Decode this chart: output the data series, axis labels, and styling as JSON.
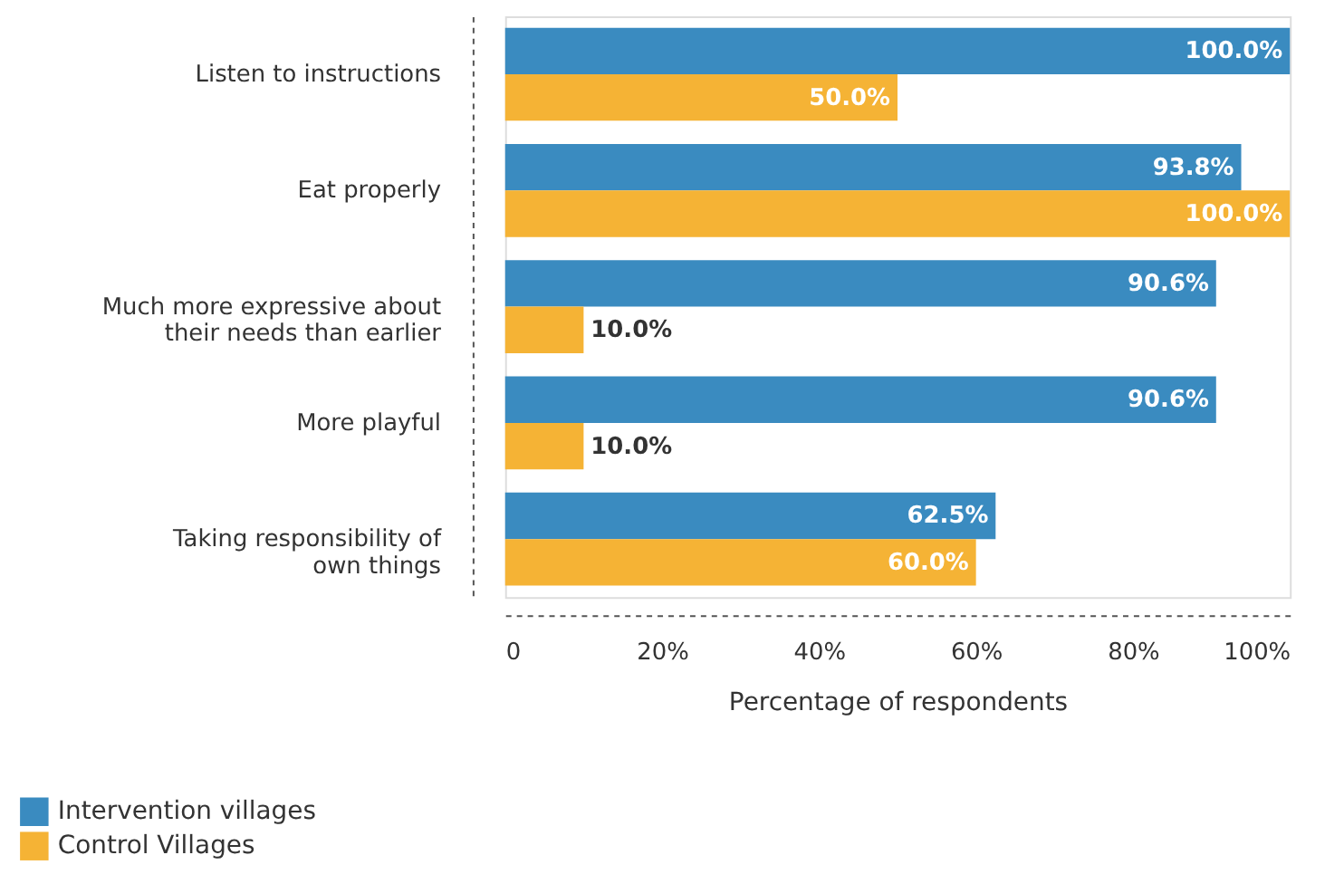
{
  "chart_data": {
    "type": "bar",
    "orientation": "horizontal",
    "categories": [
      "Listen to instructions",
      "Eat properly",
      "Much more expressive about their needs than earlier",
      "More playful",
      "Taking responsibility of own things"
    ],
    "series": [
      {
        "name": "Intervention villages",
        "color": "#3a8bc0",
        "values": [
          100.0,
          93.8,
          90.6,
          90.6,
          62.5
        ],
        "value_labels": [
          "100.0%",
          "93.8%",
          "90.6%",
          "90.6%",
          "62.5%"
        ]
      },
      {
        "name": "Control Villages",
        "color": "#f5b335",
        "values": [
          50.0,
          100.0,
          10.0,
          10.0,
          60.0
        ],
        "value_labels": [
          "50.0%",
          "100.0%",
          "10.0%",
          "10.0%",
          "60.0%"
        ]
      }
    ],
    "xlabel": "Percentage of respondents",
    "xlim": [
      0,
      100
    ],
    "xticks": [
      0,
      {
        "value": 20,
        "label": "20%"
      },
      {
        "value": 40,
        "label": "40%"
      },
      {
        "value": 60,
        "label": "60%"
      },
      {
        "value": 80,
        "label": "80%"
      },
      {
        "value": 100,
        "label": "100%"
      }
    ],
    "grid": false,
    "legend": "bottom left"
  }
}
